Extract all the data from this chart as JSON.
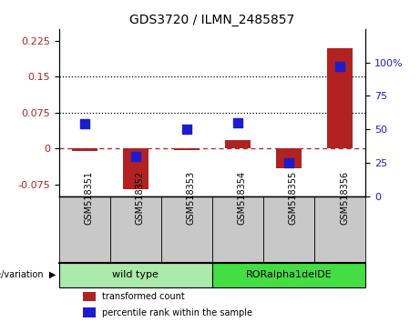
{
  "title": "GDS3720 / ILMN_2485857",
  "categories": [
    "GSM518351",
    "GSM518352",
    "GSM518353",
    "GSM518354",
    "GSM518355",
    "GSM518356"
  ],
  "red_values": [
    -0.005,
    -0.085,
    -0.004,
    0.018,
    -0.042,
    0.21
  ],
  "blue_values": [
    54,
    30,
    50,
    55,
    25,
    97
  ],
  "left_ylim": [
    -0.1,
    0.25
  ],
  "right_ylim": [
    0,
    125
  ],
  "left_yticks": [
    -0.075,
    0,
    0.075,
    0.15,
    0.225
  ],
  "right_yticks": [
    0,
    25,
    50,
    75,
    100
  ],
  "right_yticklabels": [
    "0",
    "25",
    "50",
    "75",
    "100%"
  ],
  "hlines": [
    0.075,
    0.15
  ],
  "red_color": "#b22222",
  "blue_color": "#1c1ccd",
  "dashed_line_y": 0,
  "groups": [
    {
      "label": "wild type",
      "indices": [
        0,
        1,
        2
      ],
      "color": "#aaeaaa"
    },
    {
      "label": "RORalpha1delDE",
      "indices": [
        3,
        4,
        5
      ],
      "color": "#44dd44"
    }
  ],
  "genotype_label": "genotype/variation",
  "legend_red": "transformed count",
  "legend_blue": "percentile rank within the sample",
  "bar_width": 0.5,
  "blue_marker_size": 48,
  "tick_label_gray": "#c8c8c8",
  "tick_label_font": 7
}
